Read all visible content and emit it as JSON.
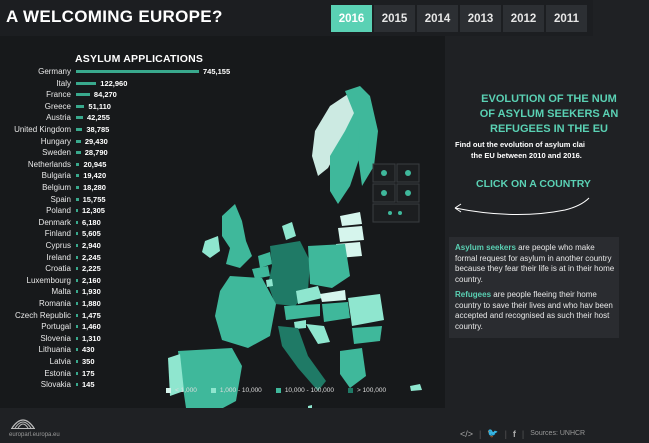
{
  "header": {
    "title": "A WELCOMING EUROPE?",
    "years": [
      {
        "label": "2016",
        "active": true
      },
      {
        "label": "2015",
        "active": false
      },
      {
        "label": "2014",
        "active": false
      },
      {
        "label": "2013",
        "active": false
      },
      {
        "label": "2012",
        "active": false
      },
      {
        "label": "2011",
        "active": false
      }
    ]
  },
  "chart_title": "ASYLUM APPLICATIONS",
  "chart_data": {
    "type": "bar",
    "title": "ASYLUM APPLICATIONS",
    "categories": [
      "Germany",
      "Italy",
      "France",
      "Greece",
      "Austria",
      "United Kingdom",
      "Hungary",
      "Sweden",
      "Netherlands",
      "Bulgaria",
      "Belgium",
      "Spain",
      "Poland",
      "Denmark",
      "Finland",
      "Cyprus",
      "Ireland",
      "Croatia",
      "Luxembourg",
      "Malta",
      "Romania",
      "Czech Republic",
      "Portugal",
      "Slovenia",
      "Lithuania",
      "Latvia",
      "Estonia",
      "Slovakia"
    ],
    "values": [
      745155,
      122960,
      84270,
      51110,
      42255,
      38785,
      29430,
      28790,
      20945,
      19420,
      18280,
      15755,
      12305,
      6180,
      5605,
      2940,
      2245,
      2225,
      2160,
      1930,
      1880,
      1475,
      1460,
      1310,
      430,
      350,
      175,
      145
    ],
    "value_labels": [
      "745,155",
      "122,960",
      "84,270",
      "51,110",
      "42,255",
      "38,785",
      "29,430",
      "28,790",
      "20,945",
      "19,420",
      "18,280",
      "15,755",
      "12,305",
      "6,180",
      "5,605",
      "2,940",
      "2,245",
      "2,225",
      "2,160",
      "1,930",
      "1,880",
      "1,475",
      "1,460",
      "1,310",
      "430",
      "350",
      "175",
      "145"
    ]
  },
  "legend": [
    {
      "label": "< 1,000",
      "color": "#d6f5ed"
    },
    {
      "label": "1,000 - 10,000",
      "color": "#8fe6cf"
    },
    {
      "label": "10,000 - 100,000",
      "color": "#3fb89b"
    },
    {
      "label": "> 100,000",
      "color": "#1f7a66"
    }
  ],
  "info": {
    "evo_title_lines": [
      "EVOLUTION OF THE NUM",
      "OF ASYLUM SEEKERS AN",
      "REFUGEES IN THE EU"
    ],
    "evo_sub_lines": [
      "Find out the evolution of asylum clai",
      "the EU between 2010 and 2016."
    ],
    "cta": "CLICK ON A COUNTRY",
    "seekers_term": "Asylum seekers",
    "seekers_text": " are people who make formal request for asylum in another country because they fear their life is at in their home country.",
    "refugees_term": "Refugees",
    "refugees_text": " are people fleeing their home country to save their lives and who hav been accepted and recognised as such their host country."
  },
  "footer": {
    "url": "europarl.europa.eu",
    "sources": "Sources: UNHCR"
  },
  "colors": {
    "accent": "#5ad1b4",
    "map_dark": "#1f7a66",
    "map_mid": "#3fb89b",
    "map_light": "#8fe6cf",
    "map_pale": "#d6f5ed"
  }
}
